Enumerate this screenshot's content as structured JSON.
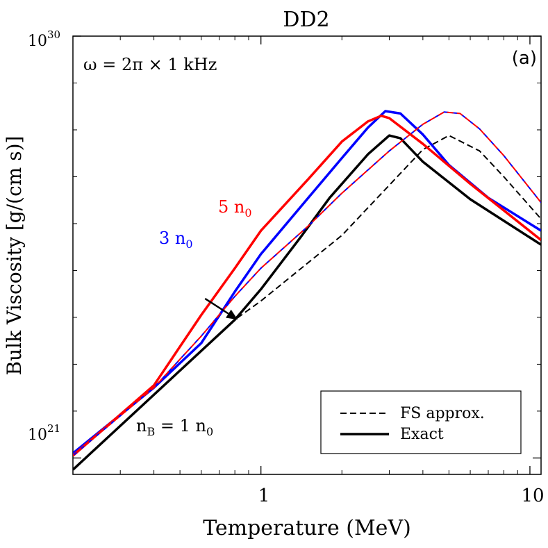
{
  "chart_data": {
    "type": "line",
    "title": "DD2",
    "panel_label": "(a)",
    "xlabel": "Temperature (MeV)",
    "ylabel": "Bulk Viscosity [g/(cm s)]",
    "xscale": "log",
    "yscale": "log",
    "xlim": [
      0.2,
      11
    ],
    "ylim_exponent": [
      20.65,
      30
    ],
    "x_ticks": [
      {
        "value": 1,
        "label": "1"
      },
      {
        "value": 10,
        "label": "10"
      }
    ],
    "y_ticks": [
      {
        "exp": 21,
        "base": "10",
        "sup": "21"
      },
      {
        "exp": 30,
        "base": "10",
        "sup": "30"
      }
    ],
    "annotations": {
      "omega": "ω = 2π × 1 kHz",
      "nB_base": "n",
      "nB_sub": "B",
      "nB_rest": " = 1 n",
      "nB_sub2": "0",
      "n5_text": "5 n",
      "n5_sub": "0",
      "n3_text": "3 n",
      "n3_sub": "0"
    },
    "legend": {
      "position": "bottom-right",
      "entries": [
        {
          "label": "FS approx.",
          "style": "dashed"
        },
        {
          "label": "Exact",
          "style": "solid"
        }
      ]
    },
    "colors": {
      "n1": "#000000",
      "n3": "#0000ff",
      "n5": "#ff0000"
    },
    "series": [
      {
        "name": "1 n0 Exact",
        "density": "1 n0",
        "kind": "Exact",
        "color": "#000000",
        "style": "solid",
        "x": [
          0.2,
          0.8,
          1.0,
          1.4,
          1.8,
          2.5,
          3.0,
          3.3,
          4.0,
          6.0,
          11.0
        ],
        "y_exp": [
          20.75,
          23.95,
          24.6,
          25.7,
          26.55,
          27.48,
          27.88,
          27.82,
          27.32,
          26.52,
          25.55
        ]
      },
      {
        "name": "1 n0 FS approx.",
        "density": "1 n0",
        "kind": "FS approx.",
        "color": "#000000",
        "style": "dashed",
        "x": [
          0.2,
          0.8,
          1.0,
          2.0,
          3.0,
          4.0,
          5.0,
          6.5,
          8.0,
          11.0
        ],
        "y_exp": [
          20.75,
          23.95,
          24.35,
          25.75,
          26.82,
          27.58,
          27.88,
          27.55,
          27.0,
          26.1
        ]
      },
      {
        "name": "3 n0 Exact",
        "density": "3 n0",
        "kind": "Exact",
        "color": "#0000ff",
        "style": "solid",
        "x": [
          0.2,
          0.4,
          0.6,
          0.8,
          1.0,
          1.5,
          2.0,
          2.5,
          2.9,
          3.3,
          4.0,
          5.0,
          7.0,
          11.0
        ],
        "y_exp": [
          21.1,
          22.5,
          23.45,
          24.55,
          25.35,
          26.55,
          27.4,
          28.05,
          28.4,
          28.35,
          27.9,
          27.25,
          26.55,
          25.85
        ]
      },
      {
        "name": "5 n0 Exact",
        "density": "5 n0",
        "kind": "Exact",
        "color": "#ff0000",
        "style": "solid",
        "x": [
          0.2,
          0.4,
          0.6,
          0.8,
          1.0,
          1.5,
          2.0,
          2.5,
          2.8,
          3.0,
          4.0,
          6.0,
          11.0
        ],
        "y_exp": [
          21.05,
          22.55,
          24.05,
          25.05,
          25.85,
          26.95,
          27.75,
          28.18,
          28.3,
          28.25,
          27.7,
          26.85,
          25.65
        ]
      },
      {
        "name": "3 n0 FS approx.",
        "density": "3 n0",
        "kind": "FS approx.",
        "color": "#0000ff",
        "style": "dashed",
        "x": [
          0.2,
          0.4,
          0.6,
          0.8,
          1.0,
          1.5,
          2.0,
          3.0,
          4.0,
          4.8,
          5.5,
          6.5,
          8.0,
          11.0
        ],
        "y_exp": [
          21.05,
          22.5,
          23.6,
          24.45,
          25.05,
          25.95,
          26.65,
          27.55,
          28.12,
          28.38,
          28.35,
          28.02,
          27.45,
          26.45
        ]
      },
      {
        "name": "5 n0 FS approx.",
        "density": "5 n0",
        "kind": "FS approx.",
        "color": "#ff0000",
        "style": "dashed",
        "x": [
          0.2,
          0.4,
          0.6,
          0.8,
          1.0,
          1.5,
          2.0,
          3.0,
          4.0,
          4.8,
          5.5,
          6.5,
          8.0,
          11.0
        ],
        "y_exp": [
          21.05,
          22.5,
          23.6,
          24.45,
          25.05,
          25.95,
          26.65,
          27.55,
          28.12,
          28.38,
          28.35,
          28.02,
          27.45,
          26.45
        ]
      }
    ],
    "arrow": {
      "label": "3 n0",
      "from_x": 0.62,
      "from_exp": 24.4,
      "to_x": 0.82,
      "to_exp": 23.95
    }
  }
}
